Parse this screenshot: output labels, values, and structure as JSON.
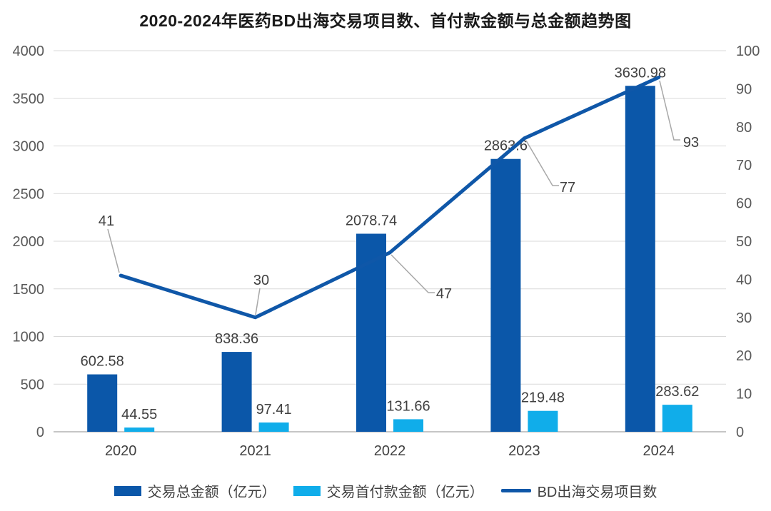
{
  "chart_data": {
    "type": "bar",
    "combo": "bar+line dual axis",
    "title": "2020-2024年医药BD出海交易项目数、首付款金额与总金额趋势图",
    "categories": [
      "2020",
      "2021",
      "2022",
      "2023",
      "2024"
    ],
    "series": [
      {
        "name": "交易总金额（亿元）",
        "type": "bar",
        "axis": "left",
        "color": "#0B57A9",
        "values": [
          602.58,
          838.36,
          2078.74,
          2863.6,
          3630.98
        ],
        "labels": [
          "602.58",
          "838.36",
          "2078.74",
          "2863.6",
          "3630.98"
        ]
      },
      {
        "name": "交易首付款金额（亿元）",
        "type": "bar",
        "axis": "left",
        "color": "#10ADEA",
        "values": [
          44.55,
          97.41,
          131.66,
          219.48,
          283.62
        ],
        "labels": [
          "44.55",
          "97.41",
          "131.66",
          "219.48",
          "283.62"
        ]
      },
      {
        "name": "BD出海交易项目数",
        "type": "line",
        "axis": "right",
        "color": "#0F57A8",
        "values": [
          41,
          30,
          47,
          77,
          93
        ],
        "labels": [
          "41",
          "30",
          "47",
          "77",
          "93"
        ]
      }
    ],
    "left_axis": {
      "min": 0,
      "max": 4000,
      "step": 500,
      "ticks": [
        "0",
        "500",
        "1000",
        "1500",
        "2000",
        "2500",
        "3000",
        "3500",
        "4000"
      ]
    },
    "right_axis": {
      "min": 0,
      "max": 100,
      "step": 10,
      "ticks": [
        "0",
        "10",
        "20",
        "30",
        "40",
        "50",
        "60",
        "70",
        "80",
        "90",
        "100"
      ]
    },
    "grid": "horizontal only",
    "legend_position": "bottom",
    "colors": {
      "gridline": "#D9D9D9",
      "axis_line": "#B3B3B3",
      "tick_text": "#595959",
      "label_text": "#404040",
      "leader_line": "#A8A8A8"
    }
  }
}
